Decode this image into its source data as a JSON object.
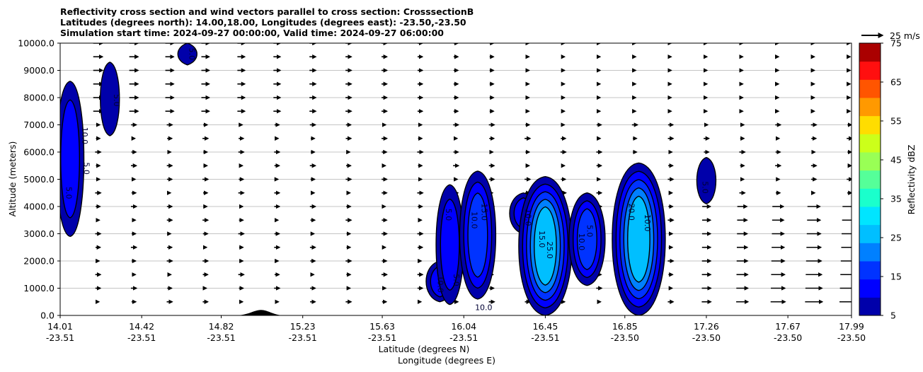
{
  "chart_data": {
    "type": "contour",
    "title": "Reflectivity cross section and wind vectors parallel to cross section: CrosssectionB",
    "subtitle_1": "Latitudes (degrees north): 14.00,18.00, Longitudes (degrees east): -23.50,-23.50",
    "subtitle_2": "Simulation start time: 2024-09-27 00:00:00, Valid time: 2024-09-27 06:00:00",
    "ylabel": "Altitude (meters)",
    "xlabel_1": "Latitude (degrees N)",
    "xlabel_2": "Longitude (degrees E)",
    "ylim": [
      0,
      10000
    ],
    "xlim": [
      14.01,
      17.99
    ],
    "grid": "horizontal",
    "y_ticks": [
      0,
      1000,
      2000,
      3000,
      4000,
      5000,
      6000,
      7000,
      8000,
      9000,
      10000
    ],
    "y_tick_labels": [
      "0.0",
      "1000.0",
      "2000.0",
      "3000.0",
      "4000.0",
      "5000.0",
      "6000.0",
      "7000.0",
      "8000.0",
      "9000.0",
      "10000.0"
    ],
    "x_ticks": [
      {
        "pos": 14.01,
        "lat": "14.01",
        "lon": "-23.51"
      },
      {
        "pos": 14.42,
        "lat": "14.42",
        "lon": "-23.51"
      },
      {
        "pos": 14.82,
        "lat": "14.82",
        "lon": "-23.51"
      },
      {
        "pos": 15.23,
        "lat": "15.23",
        "lon": "-23.51"
      },
      {
        "pos": 15.63,
        "lat": "15.63",
        "lon": "-23.51"
      },
      {
        "pos": 16.04,
        "lat": "16.04",
        "lon": "-23.51"
      },
      {
        "pos": 16.45,
        "lat": "16.45",
        "lon": "-23.51"
      },
      {
        "pos": 16.85,
        "lat": "16.85",
        "lon": "-23.50"
      },
      {
        "pos": 17.26,
        "lat": "17.26",
        "lon": "-23.50"
      },
      {
        "pos": 17.67,
        "lat": "17.67",
        "lon": "-23.50"
      },
      {
        "pos": 17.99,
        "lat": "17.99",
        "lon": "-23.50"
      }
    ],
    "colorbar": {
      "label": "Reflectivity dBZ",
      "levels": [
        5,
        10,
        15,
        20,
        25,
        30,
        35,
        40,
        45,
        50,
        55,
        60,
        65,
        70,
        75
      ],
      "colors": [
        "#0000aa",
        "#0000ff",
        "#0033ff",
        "#0080ff",
        "#00bfff",
        "#00e5ff",
        "#1affcc",
        "#55ff99",
        "#99ff55",
        "#ccff1a",
        "#ffdd00",
        "#ff9900",
        "#ff5500",
        "#ff0f0f",
        "#aa0000"
      ],
      "tick_values": [
        5,
        15,
        25,
        35,
        45,
        55,
        65,
        75
      ],
      "tick_labels": [
        "5",
        "15",
        "25",
        "35",
        "45",
        "55",
        "65",
        "75"
      ]
    },
    "quiver_key": "25 m/s",
    "reflectivity_cells": [
      {
        "x": 14.06,
        "bottom": 2900,
        "top": 8600,
        "max_dbz": 10
      },
      {
        "x": 14.26,
        "bottom": 6600,
        "top": 9300,
        "max_dbz": 5
      },
      {
        "x": 14.65,
        "bottom": 9200,
        "top": 10000,
        "max_dbz": 5
      },
      {
        "x": 15.92,
        "bottom": 500,
        "top": 2000,
        "max_dbz": 10
      },
      {
        "x": 15.97,
        "bottom": 400,
        "top": 4800,
        "max_dbz": 10
      },
      {
        "x": 16.11,
        "bottom": 600,
        "top": 5300,
        "max_dbz": 15
      },
      {
        "x": 16.34,
        "bottom": 3000,
        "top": 4500,
        "max_dbz": 10
      },
      {
        "x": 16.45,
        "bottom": 0,
        "top": 5100,
        "max_dbz": 25
      },
      {
        "x": 16.66,
        "bottom": 1100,
        "top": 4500,
        "max_dbz": 15
      },
      {
        "x": 16.92,
        "bottom": 0,
        "top": 5600,
        "max_dbz": 25
      },
      {
        "x": 17.26,
        "bottom": 4100,
        "top": 5800,
        "max_dbz": 5
      }
    ],
    "contour_labels": [
      {
        "text": "5.0",
        "x": 14.04,
        "y": 4500,
        "rot": -90
      },
      {
        "text": "10.0",
        "x": 14.12,
        "y": 6600,
        "rot": -90
      },
      {
        "text": "5.0",
        "x": 14.13,
        "y": 5400,
        "rot": -90
      },
      {
        "text": "5.0",
        "x": 14.28,
        "y": 7900,
        "rot": -90
      },
      {
        "text": "5.0",
        "x": 14.66,
        "y": 9600,
        "rot": -90
      },
      {
        "text": "10.0",
        "x": 15.91,
        "y": 1150,
        "rot": -90
      },
      {
        "text": "5.0",
        "x": 15.99,
        "y": 1300,
        "rot": -90
      },
      {
        "text": "5.0",
        "x": 15.95,
        "y": 3700,
        "rot": -90
      },
      {
        "text": "10.0",
        "x": 16.08,
        "y": 3500,
        "rot": -90
      },
      {
        "text": "15.0",
        "x": 16.13,
        "y": 3800,
        "rot": -90
      },
      {
        "text": "10.0",
        "x": 16.14,
        "y": 200,
        "rot": 0
      },
      {
        "text": "10.0",
        "x": 16.35,
        "y": 3600,
        "rot": -90
      },
      {
        "text": "25.0",
        "x": 16.46,
        "y": 2400,
        "rot": -90
      },
      {
        "text": "15.0",
        "x": 16.42,
        "y": 2800,
        "rot": -90
      },
      {
        "text": "5.0",
        "x": 16.66,
        "y": 3100,
        "rot": -90
      },
      {
        "text": "10.0",
        "x": 16.62,
        "y": 2700,
        "rot": -90
      },
      {
        "text": "20.0",
        "x": 16.87,
        "y": 3800,
        "rot": -90
      },
      {
        "text": "10.0",
        "x": 16.95,
        "y": 3400,
        "rot": -90
      },
      {
        "text": "5.0",
        "x": 17.24,
        "y": 4700,
        "rot": -90
      }
    ],
    "terrain": {
      "peak_x": 15.02,
      "peak_height": 200,
      "start_x": 14.89,
      "end_x": 15.14
    }
  }
}
